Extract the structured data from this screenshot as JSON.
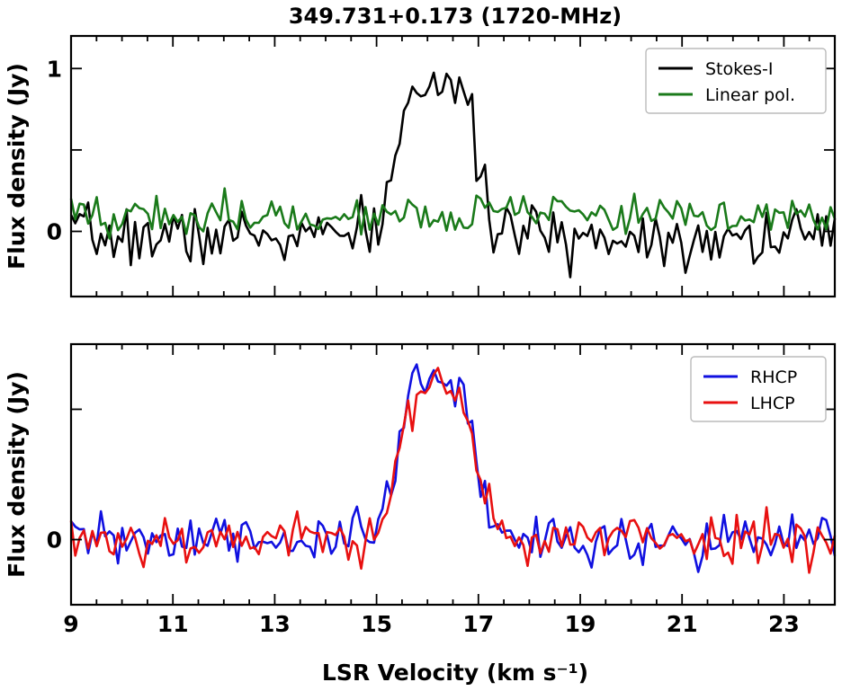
{
  "chart_data": [
    {
      "type": "line",
      "title": "349.731+0.173 (1720-MHz)",
      "ylabel": "Flux density (Jy)",
      "xlim": [
        9,
        24
      ],
      "ylim": [
        -0.4,
        1.2
      ],
      "yticks": [
        {
          "value": 0,
          "label": "0"
        },
        {
          "value": 0.5,
          "label": ""
        },
        {
          "value": 1,
          "label": "1"
        }
      ],
      "legend_position": "top-right",
      "series": [
        {
          "name": "Stokes-I",
          "color": "#000000",
          "key": "stokesI"
        },
        {
          "name": "Linear pol.",
          "color": "#1a7a1a",
          "key": "linpol"
        }
      ],
      "grid": false
    },
    {
      "type": "line",
      "xlabel": "LSR Velocity (km s⁻¹)",
      "xlim": [
        9,
        24
      ],
      "ylim": [
        -0.4,
        1.2
      ],
      "xticks": [
        "9",
        "11",
        "13",
        "15",
        "17",
        "19",
        "21",
        "23"
      ],
      "yticks": [
        {
          "value": 0,
          "label": "0"
        },
        {
          "value": 0.8,
          "label": ""
        }
      ],
      "ylabel": "Flux density (Jy)",
      "legend_position": "top-right",
      "series": [
        {
          "name": "RHCP",
          "color": "#1010e0",
          "key": "rhcp"
        },
        {
          "name": "LHCP",
          "color": "#e81010",
          "key": "lhcp"
        }
      ],
      "grid": false
    }
  ]
}
